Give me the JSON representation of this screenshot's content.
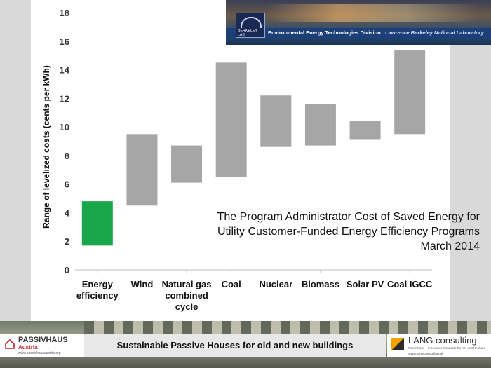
{
  "chart_data": {
    "type": "bar",
    "bar_style": "floating-range",
    "categories": [
      {
        "lines": [
          "Energy",
          "efficiency"
        ]
      },
      {
        "lines": [
          "Wind"
        ]
      },
      {
        "lines": [
          "Natural gas",
          "combined",
          "cycle"
        ]
      },
      {
        "lines": [
          "Coal"
        ]
      },
      {
        "lines": [
          "Nuclear"
        ]
      },
      {
        "lines": [
          "Biomass"
        ]
      },
      {
        "lines": [
          "Solar PV"
        ]
      },
      {
        "lines": [
          "Coal IGCC"
        ]
      }
    ],
    "ranges": [
      [
        1.7,
        4.8
      ],
      [
        4.5,
        9.5
      ],
      [
        6.1,
        8.7
      ],
      [
        6.5,
        14.5
      ],
      [
        8.6,
        12.2
      ],
      [
        8.7,
        11.6
      ],
      [
        9.1,
        10.4
      ],
      [
        9.5,
        15.4
      ]
    ],
    "bar_colors": [
      "#1aa64a",
      "#a6a6a6",
      "#a6a6a6",
      "#a6a6a6",
      "#a6a6a6",
      "#a6a6a6",
      "#a6a6a6",
      "#a6a6a6"
    ],
    "ylabel": "Range of levelized costs (cents per kWh)",
    "ylim": [
      0,
      18
    ],
    "yticks": [
      0,
      2,
      4,
      6,
      8,
      10,
      12,
      14,
      16,
      18
    ],
    "grid": false,
    "legend": "none"
  },
  "annotation": {
    "lines": [
      "The Program Administrator Cost of Saved Energy for",
      "Utility Customer-Funded Energy Efficiency Programs",
      "March 2014"
    ]
  },
  "banner": {
    "logo_text": "BERKELEY LAB",
    "division": "Environmental Energy Technologies Division",
    "lab": "Lawrence Berkeley National Laboratory"
  },
  "footer": {
    "slogan": "Sustainable Passive Houses for old and new buildings",
    "left_logo": {
      "title": "PASSIVHAUS",
      "subtitle": "Austria",
      "url": "www.passivhausaustria.org"
    },
    "right_logo": {
      "title": "LANG consulting",
      "tagline": "Passivhaus – Innovative Konzepte für Alt- und Neubau",
      "url": "www.langconsulting.at"
    },
    "colors": {
      "passivhaus_red": "#c0272d",
      "lang_orange": "#f2a300"
    }
  }
}
